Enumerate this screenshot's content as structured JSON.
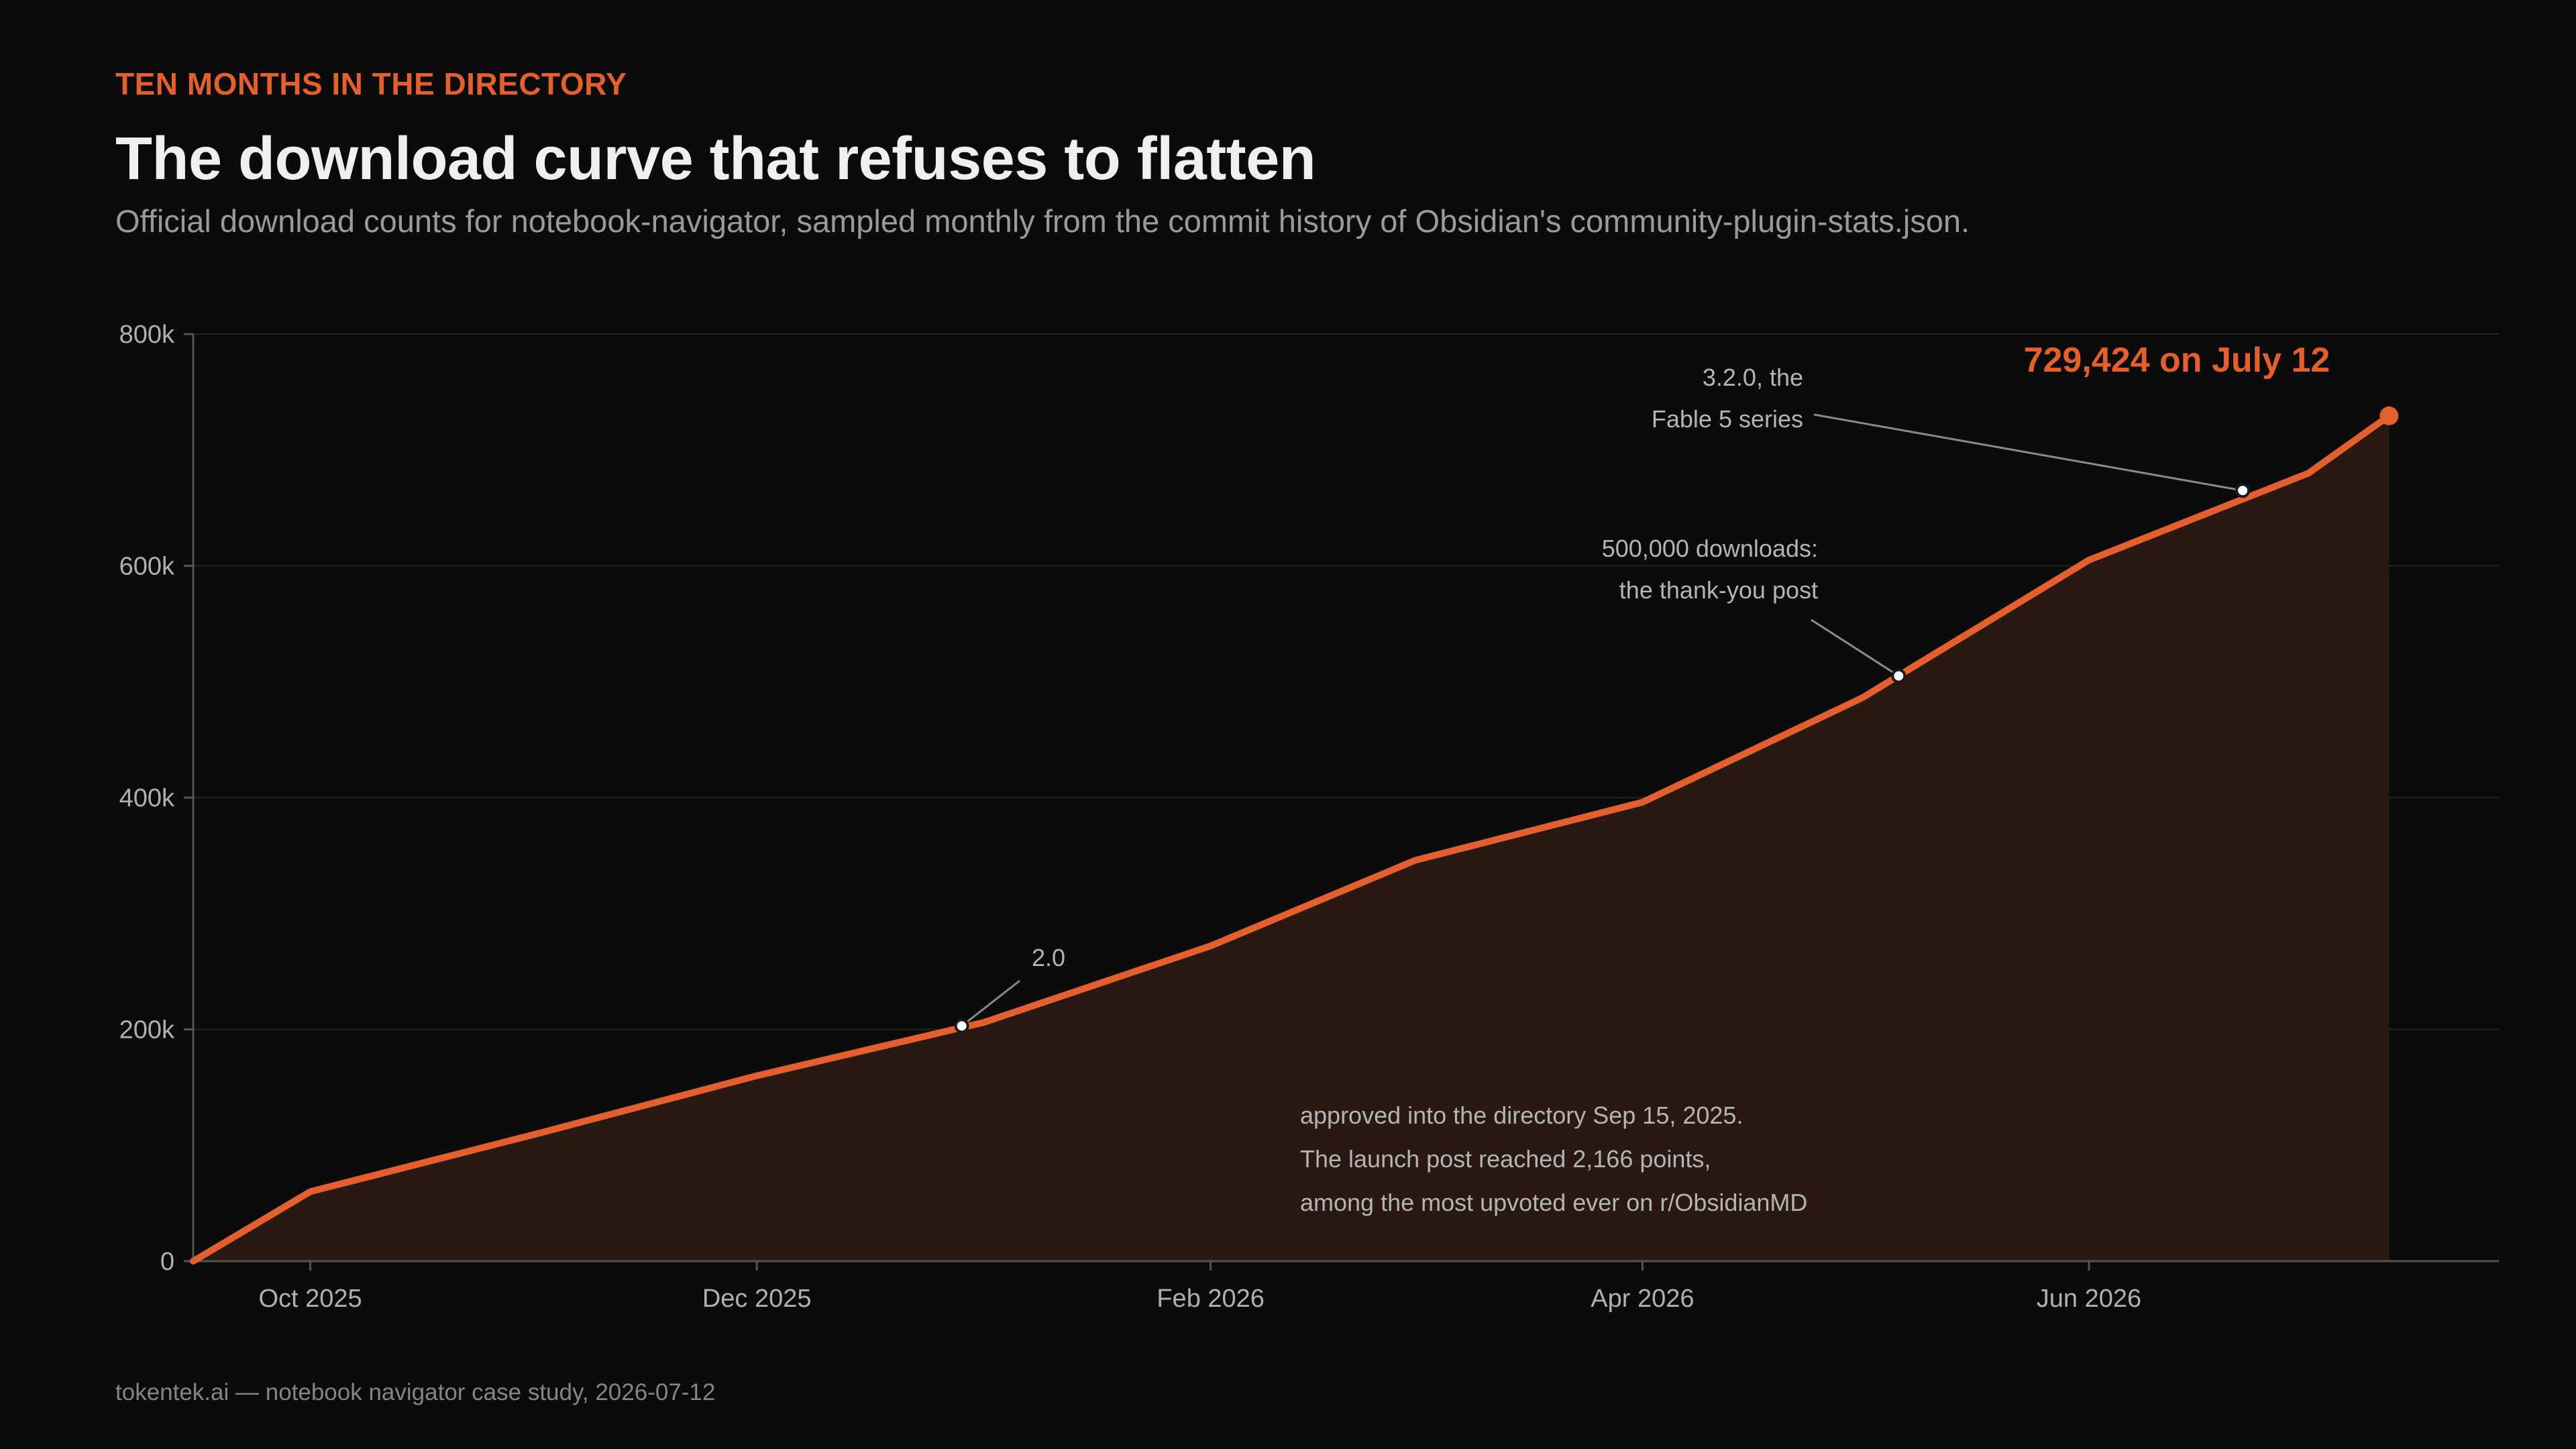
{
  "kicker": "TEN MONTHS IN THE DIRECTORY",
  "title": "The download curve that refuses to flatten",
  "subtitle": "Official download counts for notebook-navigator, sampled monthly from the commit history of Obsidian's community-plugin-stats.json.",
  "footer": "tokentek.ai — notebook navigator case study, 2026-07-12",
  "colors": {
    "accent": "#e3602e",
    "background": "#0b0b0b",
    "area_fill": "#2a1812",
    "grid": "#232323",
    "axis": "#555555",
    "text_muted": "#b0b0b0"
  },
  "chart_data": {
    "type": "area",
    "title": "The download curve that refuses to flatten",
    "xlabel": "",
    "ylabel": "",
    "ylim": [
      0,
      800000
    ],
    "yticks": [
      0,
      200000,
      400000,
      600000,
      800000
    ],
    "ytick_labels": [
      "0",
      "200k",
      "400k",
      "600k",
      "800k"
    ],
    "xlim": [
      "2025-09-15",
      "2026-07-27"
    ],
    "xticks": [
      "2025-10-01",
      "2025-12-01",
      "2026-02-01",
      "2026-04-01",
      "2026-06-01"
    ],
    "xtick_labels": [
      "Oct 2025",
      "Dec 2025",
      "Feb 2026",
      "Apr 2026",
      "Jun 2026"
    ],
    "grid": "horizontal",
    "series": [
      {
        "points": [
          {
            "x": "2025-09-15",
            "y": 0
          },
          {
            "x": "2025-10-01",
            "y": 60000
          },
          {
            "x": "2025-11-01",
            "y": 110000
          },
          {
            "x": "2025-12-01",
            "y": 160000
          },
          {
            "x": "2026-01-01",
            "y": 206000
          },
          {
            "x": "2026-02-01",
            "y": 272000
          },
          {
            "x": "2026-03-01",
            "y": 346000
          },
          {
            "x": "2026-04-01",
            "y": 396000
          },
          {
            "x": "2026-05-01",
            "y": 486000
          },
          {
            "x": "2026-06-01",
            "y": 605000
          },
          {
            "x": "2026-07-01",
            "y": 680000
          },
          {
            "x": "2026-07-12",
            "y": 729424
          }
        ]
      }
    ],
    "annotations": [
      {
        "x": "2025-12-29",
        "y": 203000,
        "lines": [
          "2.0"
        ]
      },
      {
        "x": "2026-05-06",
        "y": 505000,
        "lines": [
          "500,000 downloads:",
          "the thank-you post"
        ]
      },
      {
        "x": "2026-06-22",
        "y": 665000,
        "lines": [
          "3.2.0, the",
          "Fable 5 series"
        ]
      }
    ],
    "end_label": "729,424 on July 12",
    "note": [
      "approved into the directory Sep 15, 2025.",
      "The launch post reached 2,166 points,",
      "among the most upvoted ever on r/ObsidianMD"
    ]
  }
}
